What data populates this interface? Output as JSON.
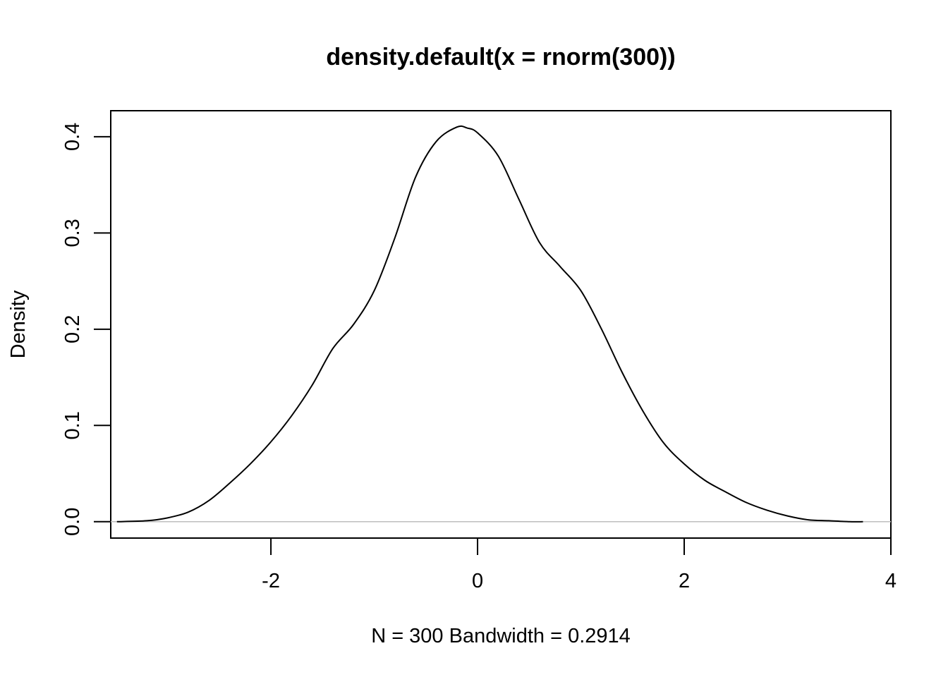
{
  "chart_data": {
    "type": "line",
    "title": "density.default(x = rnorm(300))",
    "xlabel": "N = 300   Bandwidth = 0.2914",
    "ylabel": "Density",
    "xlim": [
      -3.55,
      4.0
    ],
    "ylim": [
      -0.017,
      0.427
    ],
    "xticks": [
      -2,
      0,
      2,
      4
    ],
    "xtick_labels": [
      "-2",
      "0",
      "2",
      "4"
    ],
    "yticks": [
      0.0,
      0.1,
      0.2,
      0.3,
      0.4
    ],
    "ytick_labels": [
      "0.0",
      "0.1",
      "0.2",
      "0.3",
      "0.4"
    ],
    "grid": false,
    "baseline": 0,
    "series": [
      {
        "x": [
          -3.49,
          -3.2,
          -3.0,
          -2.8,
          -2.6,
          -2.4,
          -2.2,
          -2.0,
          -1.8,
          -1.6,
          -1.4,
          -1.2,
          -1.0,
          -0.8,
          -0.6,
          -0.4,
          -0.2,
          -0.1,
          0.0,
          0.2,
          0.4,
          0.6,
          0.8,
          1.0,
          1.2,
          1.4,
          1.6,
          1.8,
          2.0,
          2.2,
          2.4,
          2.6,
          2.8,
          3.0,
          3.2,
          3.4,
          3.6,
          3.73
        ],
        "y": [
          0.0,
          0.001,
          0.004,
          0.01,
          0.022,
          0.04,
          0.06,
          0.083,
          0.11,
          0.142,
          0.18,
          0.205,
          0.24,
          0.295,
          0.358,
          0.395,
          0.41,
          0.409,
          0.404,
          0.38,
          0.335,
          0.29,
          0.265,
          0.24,
          0.2,
          0.155,
          0.115,
          0.082,
          0.06,
          0.043,
          0.031,
          0.02,
          0.012,
          0.006,
          0.002,
          0.001,
          0.0,
          0.0
        ]
      }
    ]
  }
}
